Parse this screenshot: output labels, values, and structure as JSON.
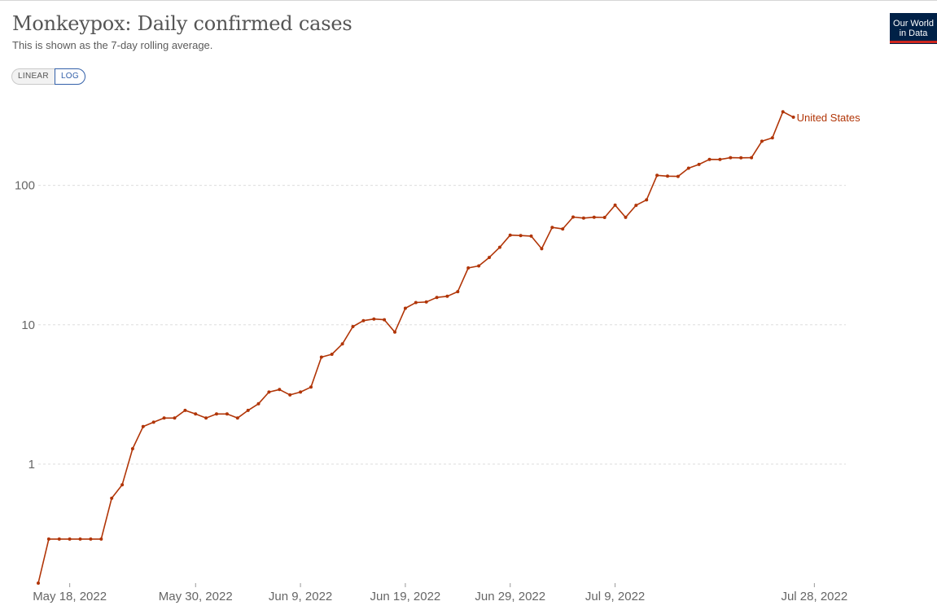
{
  "header": {
    "title": "Monkeypox: Daily confirmed cases",
    "subtitle": "This is shown as the 7-day rolling average."
  },
  "scale_toggle": {
    "linear_label": "LINEAR",
    "log_label": "LOG",
    "selected": "LOG"
  },
  "logo": {
    "line1": "Our World",
    "line2": "in Data"
  },
  "colors": {
    "series": "#b13507",
    "grid": "#dddddd",
    "axis_text": "#666666"
  },
  "chart_data": {
    "type": "line",
    "yscale": "log",
    "ylim": [
      0.14,
      420
    ],
    "xlim": [
      "2022-05-15",
      "2022-07-31"
    ],
    "grid": true,
    "y_ticks": [
      {
        "value": 1,
        "label": "1"
      },
      {
        "value": 10,
        "label": "10"
      },
      {
        "value": 100,
        "label": "100"
      }
    ],
    "x_ticks": [
      {
        "date": "2022-05-18",
        "label": "May 18, 2022"
      },
      {
        "date": "2022-05-30",
        "label": "May 30, 2022"
      },
      {
        "date": "2022-06-09",
        "label": "Jun 9, 2022"
      },
      {
        "date": "2022-06-19",
        "label": "Jun 19, 2022"
      },
      {
        "date": "2022-06-29",
        "label": "Jun 29, 2022"
      },
      {
        "date": "2022-07-09",
        "label": "Jul 9, 2022"
      },
      {
        "date": "2022-07-28",
        "label": "Jul 28, 2022"
      }
    ],
    "series": [
      {
        "name": "United States",
        "start_date": "2022-05-15",
        "values": [
          0.14,
          0.29,
          0.29,
          0.29,
          0.29,
          0.29,
          0.29,
          0.57,
          0.71,
          1.29,
          1.86,
          2.0,
          2.14,
          2.14,
          2.43,
          2.29,
          2.14,
          2.29,
          2.29,
          2.14,
          2.43,
          2.71,
          3.29,
          3.43,
          3.14,
          3.29,
          3.57,
          5.86,
          6.14,
          7.29,
          9.71,
          10.71,
          11.0,
          10.86,
          8.86,
          13.14,
          14.43,
          14.57,
          15.71,
          16.0,
          17.29,
          25.57,
          26.43,
          30.43,
          36.0,
          44.0,
          43.71,
          43.29,
          35.14,
          50.0,
          48.71,
          59.29,
          58.29,
          59.14,
          58.86,
          72.14,
          59.0,
          72.0,
          78.71,
          118.0,
          116.57,
          116.0,
          133.0,
          141.43,
          153.71,
          153.43,
          158.14,
          157.71,
          158.14,
          207.57,
          219.71,
          337.86,
          308.43
        ]
      }
    ]
  }
}
